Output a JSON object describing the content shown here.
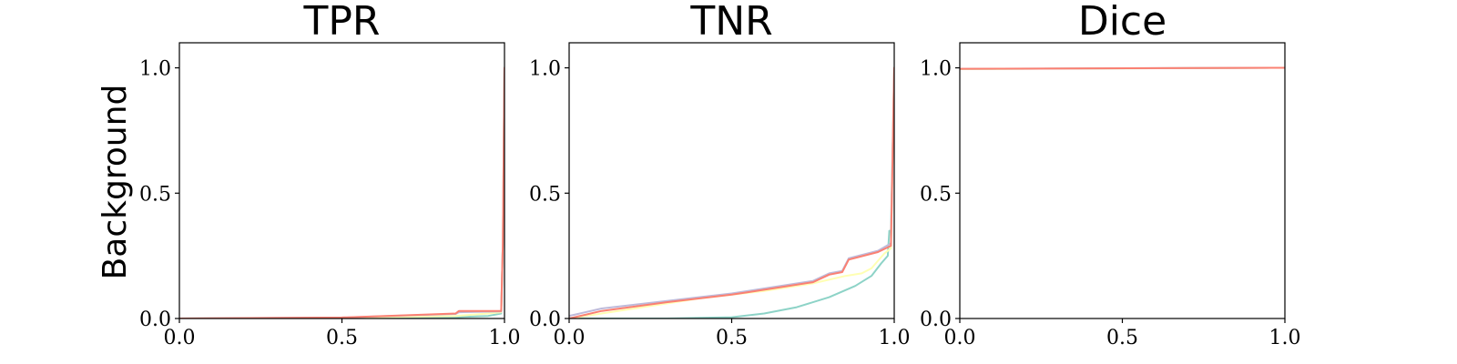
{
  "row_label": "Background",
  "chart_data": [
    {
      "type": "line",
      "title": "TPR",
      "xlabel": "",
      "ylabel": "",
      "xlim": [
        0,
        1
      ],
      "ylim": [
        0,
        1.1
      ],
      "x_ticks": [
        "0.0",
        "0.5",
        "1.0"
      ],
      "y_ticks": [
        "0.0",
        "0.5",
        "1.0"
      ],
      "grid": false,
      "series": [
        {
          "color": "#8dd3c7",
          "x": [
            0,
            0.5,
            0.85,
            0.95,
            0.99,
            0.995,
            1.0
          ],
          "y": [
            0,
            0.002,
            0.005,
            0.01,
            0.02,
            0.3,
            1.0
          ]
        },
        {
          "color": "#ffffb3",
          "x": [
            0,
            0.5,
            0.85,
            0.95,
            0.99,
            0.995,
            1.0
          ],
          "y": [
            0,
            0.003,
            0.01,
            0.02,
            0.025,
            0.3,
            1.0
          ]
        },
        {
          "color": "#bebada",
          "x": [
            0,
            0.5,
            0.85,
            0.86,
            0.99,
            0.995,
            1.0
          ],
          "y": [
            0,
            0.004,
            0.018,
            0.025,
            0.028,
            0.3,
            1.0
          ]
        },
        {
          "color": "#fb8072",
          "x": [
            0,
            0.5,
            0.85,
            0.86,
            0.99,
            0.995,
            1.0
          ],
          "y": [
            0,
            0.004,
            0.02,
            0.03,
            0.03,
            0.3,
            1.0
          ]
        }
      ]
    },
    {
      "type": "line",
      "title": "TNR",
      "xlabel": "",
      "ylabel": "",
      "xlim": [
        0,
        1
      ],
      "ylim": [
        0,
        1.1
      ],
      "x_ticks": [
        "0.0",
        "0.5",
        "1.0"
      ],
      "y_ticks": [
        "0.0",
        "0.5",
        "1.0"
      ],
      "grid": false,
      "series": [
        {
          "color": "#8dd3c7",
          "x": [
            0,
            0.3,
            0.5,
            0.6,
            0.7,
            0.8,
            0.88,
            0.93,
            0.96,
            0.98,
            0.985,
            0.99,
            1.0
          ],
          "y": [
            0,
            0.0,
            0.005,
            0.02,
            0.045,
            0.085,
            0.13,
            0.17,
            0.22,
            0.25,
            0.35,
            0.35,
            1.0
          ]
        },
        {
          "color": "#ffffb3",
          "x": [
            0,
            0.2,
            0.4,
            0.6,
            0.75,
            0.85,
            0.9,
            0.93,
            0.95,
            0.97,
            0.99,
            1.0
          ],
          "y": [
            0,
            0.04,
            0.08,
            0.11,
            0.14,
            0.17,
            0.18,
            0.2,
            0.23,
            0.26,
            0.28,
            1.0
          ]
        },
        {
          "color": "#bebada",
          "x": [
            0,
            0.1,
            0.3,
            0.5,
            0.55,
            0.65,
            0.75,
            0.8,
            0.84,
            0.86,
            0.95,
            0.99,
            1.0
          ],
          "y": [
            0.01,
            0.04,
            0.07,
            0.1,
            0.11,
            0.13,
            0.15,
            0.18,
            0.19,
            0.24,
            0.27,
            0.3,
            1.0
          ]
        },
        {
          "color": "#fb8072",
          "x": [
            0,
            0.1,
            0.3,
            0.5,
            0.55,
            0.65,
            0.75,
            0.8,
            0.84,
            0.86,
            0.95,
            0.99,
            1.0
          ],
          "y": [
            0.0,
            0.03,
            0.065,
            0.095,
            0.105,
            0.125,
            0.145,
            0.175,
            0.185,
            0.235,
            0.265,
            0.29,
            1.0
          ]
        }
      ]
    },
    {
      "type": "line",
      "title": "Dice",
      "xlabel": "",
      "ylabel": "",
      "xlim": [
        0,
        1
      ],
      "ylim": [
        0,
        1.1
      ],
      "x_ticks": [
        "0.0",
        "0.5",
        "1.0"
      ],
      "y_ticks": [
        "0.0",
        "0.5",
        "1.0"
      ],
      "grid": false,
      "series": [
        {
          "color": "#8dd3c7",
          "x": [
            0,
            1.0
          ],
          "y": [
            0.995,
            1.0
          ]
        },
        {
          "color": "#ffffb3",
          "x": [
            0,
            1.0
          ],
          "y": [
            0.995,
            1.0
          ]
        },
        {
          "color": "#bebada",
          "x": [
            0,
            1.0
          ],
          "y": [
            0.996,
            1.0
          ]
        },
        {
          "color": "#fb8072",
          "x": [
            0,
            1.0
          ],
          "y": [
            0.996,
            1.0
          ]
        }
      ]
    }
  ]
}
